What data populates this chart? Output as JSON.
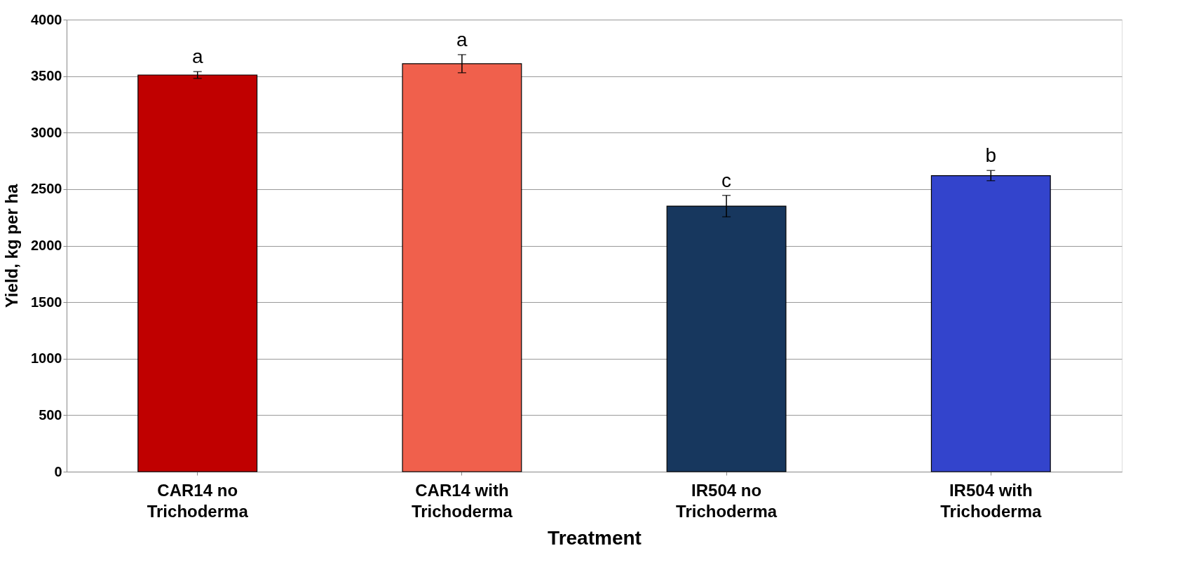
{
  "chart_data": {
    "type": "bar",
    "xlabel": "Treatment",
    "ylabel": "Yield, kg per ha",
    "categories": [
      "CAR14 no Trichoderma",
      "CAR14 with Trichoderma",
      "IR504 no Trichoderma",
      "IR504 with Trichoderma"
    ],
    "values": [
      3510,
      3610,
      2350,
      2620
    ],
    "errors": [
      30,
      80,
      95,
      45
    ],
    "colors": [
      "#c00000",
      "#f0604c",
      "#17375e",
      "#3344cc"
    ],
    "ylim": [
      0,
      4000
    ],
    "yticks": [
      0,
      500,
      1000,
      1500,
      2000,
      2500,
      3000,
      3500,
      4000
    ],
    "grid": "y",
    "annotations": [
      {
        "text": "a",
        "x": "CAR14 no Trichoderma",
        "y": 3540
      },
      {
        "text": "a",
        "x": "CAR14 with Trichoderma",
        "y": 3690
      },
      {
        "text": "c",
        "x": "IR504 no Trichoderma",
        "y": 2445
      },
      {
        "text": "b",
        "x": "IR504 with Trichoderma",
        "y": 2665
      }
    ]
  }
}
